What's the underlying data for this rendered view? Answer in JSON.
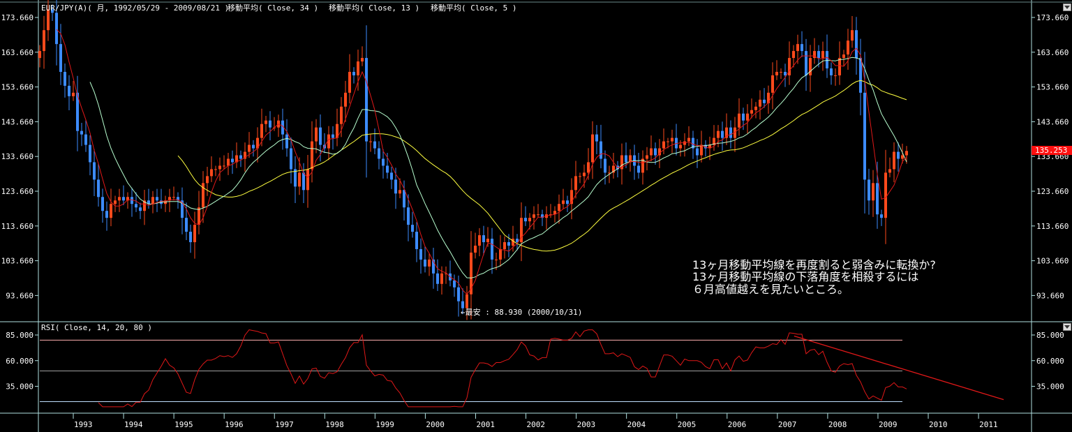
{
  "header": {
    "title": "EUR/JPY(A)( 月, 1992/05/29 - 2009/08/21 )",
    "indicators": [
      "移動平均( Close, 34 )",
      "移動平均( Close, 13 )",
      "移動平均( Close, 5 )"
    ]
  },
  "rsi_panel": {
    "title": "RSI( Close, 14, 20, 80 )"
  },
  "annotations": {
    "low_label": "←最安 : 88.930 (2000/10/31)",
    "comment_lines": [
      "13ヶ月移動平均線を再度割ると弱含みに転換か?",
      "13ヶ月移動平均線の下落角度を相殺するには",
      "６月高値越えを見たいところ。"
    ],
    "last_price": "135.253"
  },
  "colors": {
    "up_candle": "#ff4a1c",
    "down_candle": "#3d8cff",
    "ma5": "#e01818",
    "ma13": "#b8ffd0",
    "ma34": "#ffff40",
    "rsi": "#e01818",
    "axis": "#b0e0e0",
    "last_price_bg": "#ff1010"
  },
  "chart_data": [
    {
      "type": "candlestick",
      "title": "EUR/JPY(A)( 月, 1992/05/29 - 2009/08/21 )",
      "start_month": "1992-05",
      "interval": "month",
      "close": [
        164,
        170,
        176,
        175,
        166,
        158,
        154,
        151,
        152,
        141,
        140,
        137,
        132,
        127,
        122,
        118,
        116,
        120,
        121,
        122,
        121,
        122,
        120,
        119,
        118,
        121,
        120,
        122,
        121,
        120,
        121,
        122,
        122,
        121,
        116,
        112,
        109,
        114,
        119,
        126,
        128,
        130,
        130,
        131,
        131,
        133,
        132,
        134,
        133,
        135,
        137,
        136,
        139,
        143,
        144,
        142,
        142,
        144,
        140,
        136,
        130,
        125,
        129,
        124,
        130,
        138,
        142,
        137,
        136,
        140,
        139,
        143,
        148,
        152,
        158,
        157,
        161,
        162,
        138,
        138,
        136,
        133,
        131,
        129,
        127,
        123,
        124,
        119,
        114,
        112,
        107,
        104,
        102,
        104,
        100,
        97,
        100,
        100,
        98,
        96,
        92,
        90,
        94,
        106,
        108,
        111,
        109,
        110,
        104,
        104,
        107,
        109,
        108,
        110,
        109,
        116,
        115,
        116,
        117,
        117,
        116,
        117,
        117,
        118,
        120,
        121,
        120,
        124,
        128,
        128,
        129,
        132,
        140,
        138,
        133,
        129,
        129,
        131,
        130,
        134,
        132,
        134,
        131,
        129,
        133,
        134,
        136,
        134,
        136,
        138,
        138,
        139,
        136,
        137,
        138,
        139,
        136,
        134,
        137,
        136,
        137,
        139,
        141,
        139,
        142,
        139,
        142,
        146,
        144,
        146,
        147,
        148,
        150,
        149,
        152,
        157,
        158,
        158,
        157,
        162,
        164,
        166,
        164,
        157,
        162,
        164,
        162,
        164,
        159,
        157,
        157,
        162,
        163,
        167,
        170,
        162,
        152,
        127,
        121,
        126,
        117,
        116,
        129,
        130,
        135,
        133,
        134,
        135.253
      ],
      "moving_averages": [
        34,
        13,
        5
      ],
      "y_ticks": [
        "173.660",
        "163.660",
        "153.660",
        "143.660",
        "133.660",
        "123.660",
        "113.660",
        "103.660",
        "93.660"
      ],
      "ylim": [
        86,
        177.5
      ],
      "x_ticks": [
        "1993",
        "1994",
        "1995",
        "1996",
        "1997",
        "1998",
        "1999",
        "2000",
        "2001",
        "2002",
        "2003",
        "2004",
        "2005",
        "2006",
        "2007",
        "2008",
        "2009",
        "2010",
        "2011"
      ],
      "low": {
        "value": 88.93,
        "date": "2000/10/31"
      }
    },
    {
      "type": "line",
      "title": "RSI( Close, 14, 20, 80 )",
      "period": 14,
      "levels": [
        80,
        50,
        20
      ],
      "y_ticks": [
        "85.000",
        "60.000",
        "35.000"
      ],
      "trendline": {
        "from": {
          "date": "2007-05",
          "value": 84
        },
        "to": {
          "date": "2011-07",
          "value": 22
        }
      }
    }
  ]
}
